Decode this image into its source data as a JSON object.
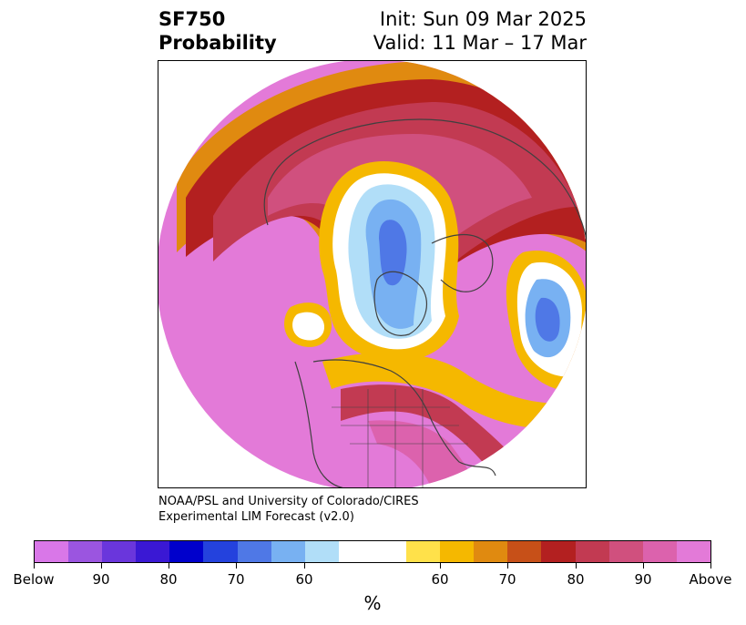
{
  "header": {
    "variable": "SF750",
    "product": "Probability",
    "init": "Init: Sun 09 Mar 2025",
    "valid": "Valid: 11 Mar – 17 Mar"
  },
  "credits": {
    "line1": "NOAA/PSL and University of Colorado/CIRES",
    "line2": "Experimental LIM Forecast (v2.0)"
  },
  "colorbar": {
    "colors": [
      "#d977e8",
      "#9b55e0",
      "#6a36dc",
      "#3a18d4",
      "#0000cc",
      "#2442dd",
      "#4f78e6",
      "#78b1f2",
      "#b1def8",
      "#ffffff",
      "#ffffff",
      "#ffe14a",
      "#f5b800",
      "#e08a10",
      "#c75018",
      "#b32020",
      "#c23a52",
      "#d0507e",
      "#dc62ad",
      "#e37ad8"
    ],
    "tick_labels": [
      "Below",
      "90",
      "80",
      "70",
      "60",
      "60",
      "70",
      "80",
      "90",
      "Above"
    ],
    "unit": "%"
  },
  "map": {
    "projection": "north-polar-stereographic",
    "palette": {
      "above_high": "#e37ad8",
      "above_mid": "#dc62ad",
      "above_low": "#c23a52",
      "red": "#b32020",
      "orange": "#e08a10",
      "yellow": "#f5b800",
      "below_light": "#b1def8",
      "below_mid": "#78b1f2",
      "below_high": "#4f78e6"
    }
  }
}
